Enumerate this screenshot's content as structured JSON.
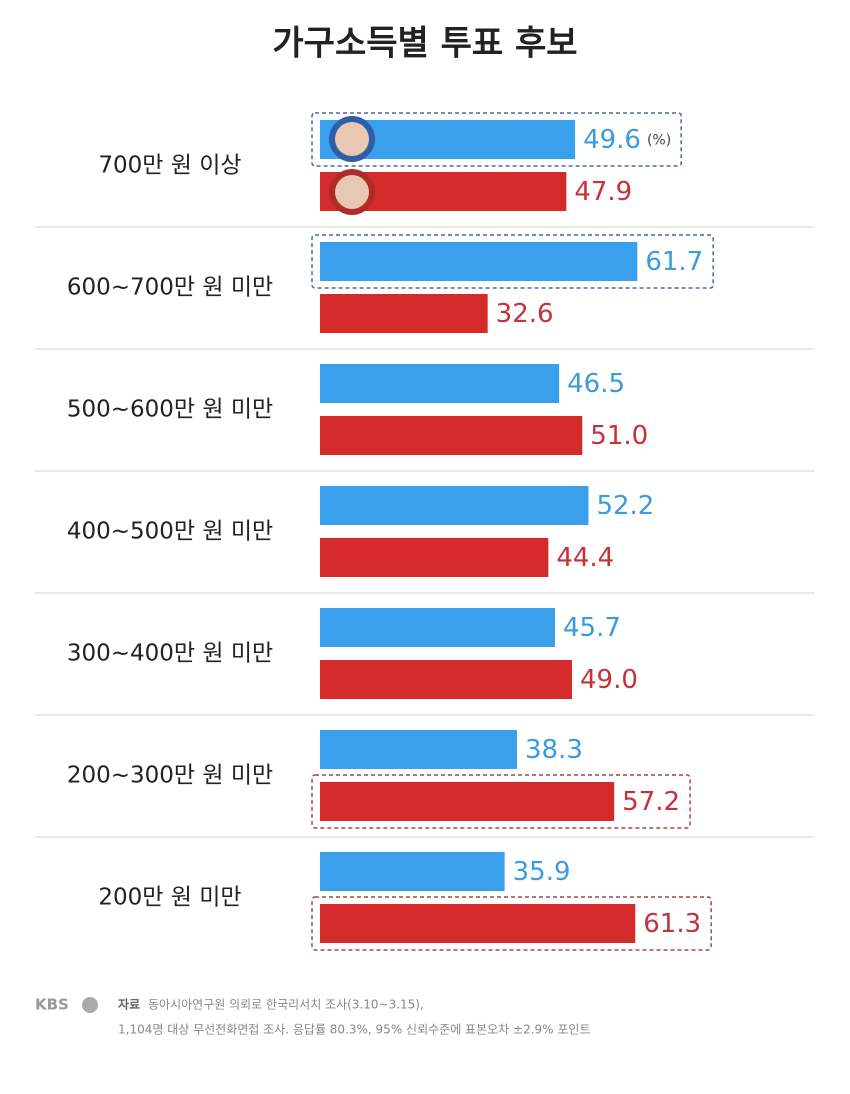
{
  "chart_data": {
    "type": "hbar-grouped",
    "title": "가구소득별 투표 후보",
    "unit_label": "(%)",
    "categories": [
      "700만 원 이상",
      "600~700만 원 미만",
      "500~600만 원 미만",
      "400~500만 원 미만",
      "300~400만 원 미만",
      "200~300만 원 미만",
      "200만 원 미만"
    ],
    "series": [
      {
        "color": "#3aa0ec",
        "label_color": "#3a9be0",
        "values": [
          49.6,
          61.7,
          46.5,
          52.2,
          45.7,
          38.3,
          35.9
        ],
        "highlight": [
          true,
          true,
          false,
          false,
          false,
          false,
          false
        ]
      },
      {
        "color": "#d42a2a",
        "label_color": "#c8303a",
        "values": [
          47.9,
          32.6,
          51,
          44.4,
          49,
          57.2,
          61.3
        ],
        "value_labels": [
          "47.9",
          "32.6",
          "51.0",
          "44.4",
          "49.0",
          "57.2",
          "61.3"
        ],
        "highlight": [
          false,
          false,
          false,
          false,
          false,
          true,
          true
        ]
      }
    ],
    "xlim": [
      0,
      70
    ]
  },
  "footer": {
    "brand": "KBS",
    "source_label": "자료",
    "source": [
      "동아시아연구원 의뢰로 한국리서치 조사(3.10~3.15),",
      "1,104명 대상 무선전화면접 조사. 응답률 80.3%, 95% 신뢰수준에 표본오차 ±2.9% 포인트"
    ]
  }
}
